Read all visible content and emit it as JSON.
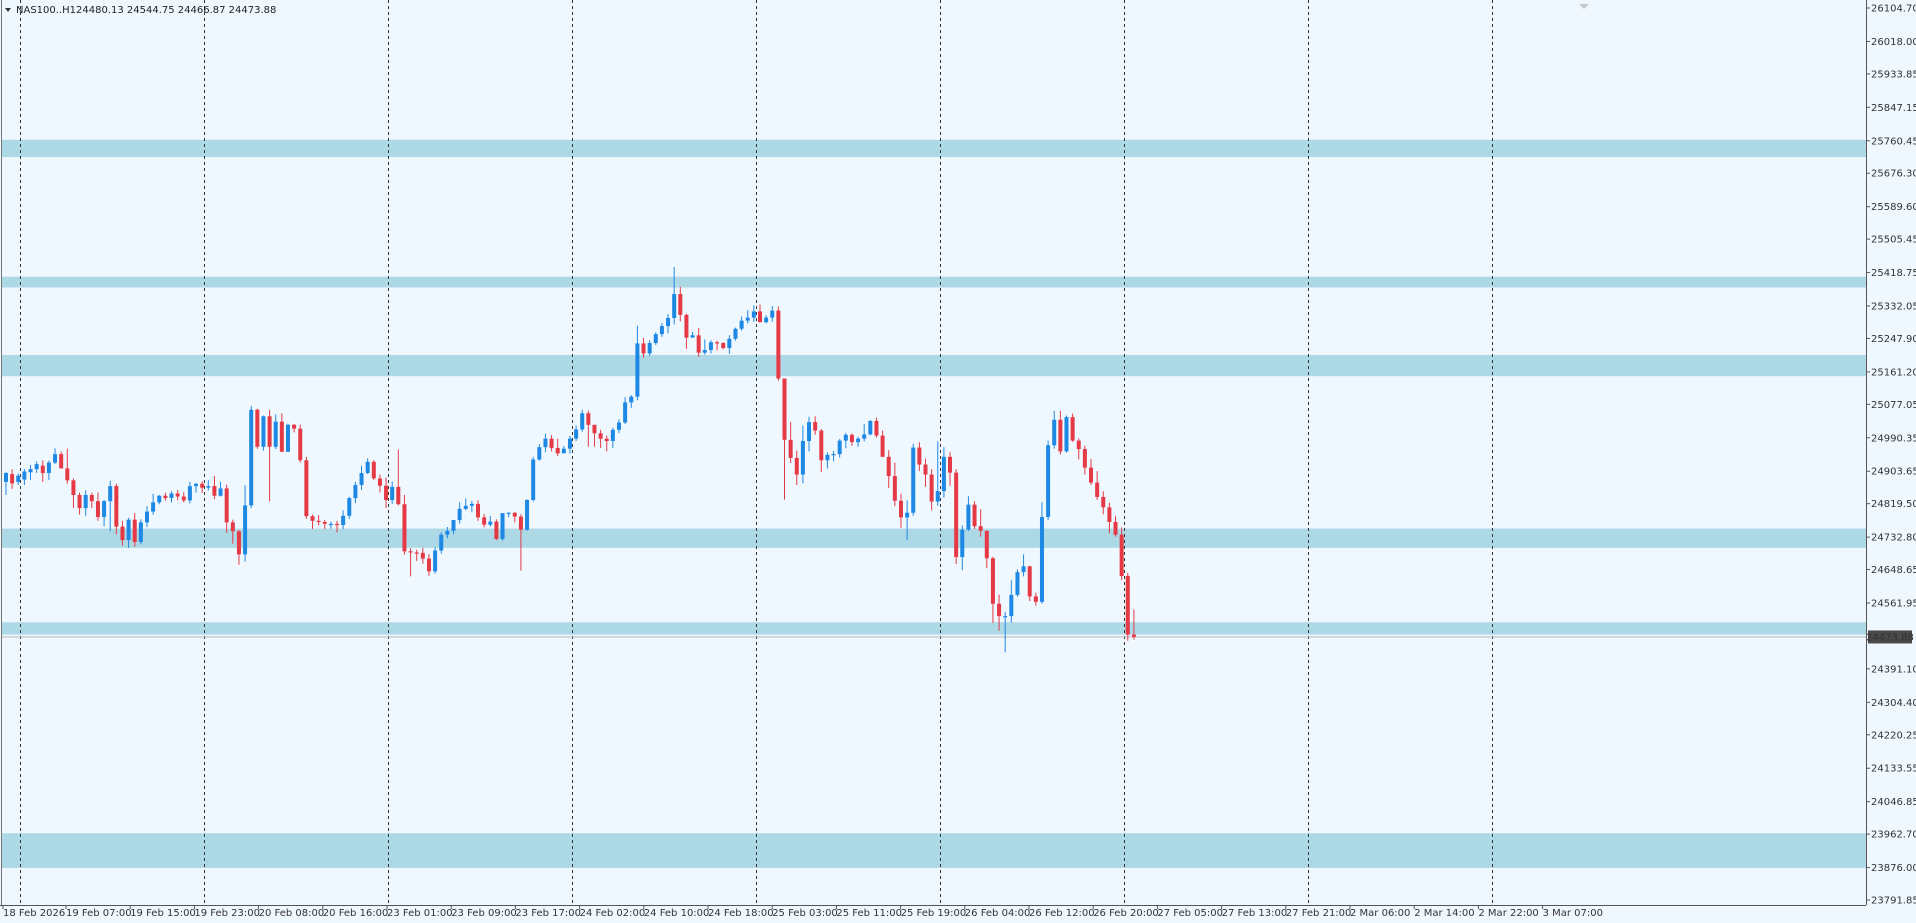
{
  "chart_data": {
    "type": "candlestick",
    "title": "NAS100..H1",
    "ohlc_text": "24480.13 24544.75 24466.87 24473.88",
    "current_price": "24473.88",
    "colors": {
      "bull": "#1e88e5",
      "bear": "#e53945",
      "zone": "#add8e6",
      "background": "#f0f8ff",
      "grid": "#333333"
    },
    "price_ticks": [
      "26104.70",
      "26018.00",
      "25933.85",
      "25847.15",
      "25760.45",
      "25676.30",
      "25589.60",
      "25505.45",
      "25418.75",
      "25332.05",
      "25247.90",
      "25161.20",
      "25077.05",
      "24990.35",
      "24903.65",
      "24819.50",
      "24732.80",
      "24648.65",
      "24561.95",
      "24473.88",
      "24391.10",
      "24304.40",
      "24220.25",
      "24133.55",
      "24046.85",
      "23962.70",
      "23876.00",
      "23791.85"
    ],
    "time_ticks": [
      "18 Feb 2026",
      "19 Feb 07:00",
      "19 Feb 15:00",
      "19 Feb 23:00",
      "20 Feb 08:00",
      "20 Feb 16:00",
      "23 Feb 01:00",
      "23 Feb 09:00",
      "23 Feb 17:00",
      "24 Feb 02:00",
      "24 Feb 10:00",
      "24 Feb 18:00",
      "25 Feb 03:00",
      "25 Feb 11:00",
      "25 Feb 19:00",
      "26 Feb 04:00",
      "26 Feb 12:00",
      "26 Feb 20:00",
      "27 Feb 05:00",
      "27 Feb 13:00",
      "27 Feb 21:00",
      "2 Mar 06:00",
      "2 Mar 14:00",
      "2 Mar 22:00",
      "3 Mar 07:00"
    ],
    "ylim": [
      23791.85,
      26104.7
    ],
    "zones": [
      [
        25718,
        25763
      ],
      [
        25380,
        25408
      ],
      [
        25150,
        25205
      ],
      [
        24705,
        24755
      ],
      [
        24480,
        24512
      ],
      [
        23875,
        23965
      ]
    ],
    "candles": [
      [
        24876,
        24899,
        24842,
        24901
      ],
      [
        24896,
        24872,
        24858,
        24909
      ],
      [
        24876,
        24892,
        24868,
        24898
      ],
      [
        24882,
        24903,
        24868,
        24909
      ],
      [
        24901,
        24909,
        24881,
        24920
      ],
      [
        24909,
        24922,
        24899,
        24929
      ],
      [
        24918,
        24899,
        24876,
        24932
      ],
      [
        24899,
        24926,
        24881,
        24931
      ],
      [
        24926,
        24948,
        24922,
        24963
      ],
      [
        24948,
        24911,
        24911,
        24955
      ],
      [
        24911,
        24880,
        24871,
        24962
      ],
      [
        24880,
        24842,
        24808,
        24885
      ],
      [
        24842,
        24808,
        24791,
        24848
      ],
      [
        24808,
        24842,
        24788,
        24854
      ],
      [
        24842,
        24826,
        24808,
        24848
      ],
      [
        24826,
        24785,
        24775,
        24849
      ],
      [
        24785,
        24826,
        24761,
        24829
      ],
      [
        24826,
        24865,
        24748,
        24879
      ],
      [
        24865,
        24760,
        24740,
        24871
      ],
      [
        24760,
        24725,
        24711,
        24775
      ],
      [
        24725,
        24778,
        24705,
        24783
      ],
      [
        24778,
        24720,
        24708,
        24795
      ],
      [
        24720,
        24771,
        24714,
        24779
      ],
      [
        24771,
        24799,
        24759,
        24813
      ],
      [
        24799,
        24823,
        24791,
        24845
      ],
      [
        24823,
        24840,
        24818,
        24842
      ],
      [
        24840,
        24834,
        24827,
        24848
      ],
      [
        24834,
        24846,
        24823,
        24852
      ],
      [
        24846,
        24838,
        24828,
        24855
      ],
      [
        24838,
        24828,
        24823,
        24849
      ],
      [
        24828,
        24865,
        24820,
        24876
      ],
      [
        24865,
        24871,
        24848,
        24873
      ],
      [
        24871,
        24861,
        24847,
        24878
      ],
      [
        24861,
        24865,
        24854,
        24881
      ],
      [
        24865,
        24840,
        24831,
        24891
      ],
      [
        24840,
        24859,
        24838,
        24876
      ],
      [
        24859,
        24771,
        24744,
        24869
      ],
      [
        24771,
        24748,
        24716,
        24778
      ],
      [
        24748,
        24688,
        24661,
        24751
      ],
      [
        24688,
        24815,
        24669,
        24867
      ],
      [
        24815,
        25063,
        24808,
        25073
      ],
      [
        25063,
        24967,
        24962,
        25066
      ],
      [
        24967,
        25046,
        24957,
        25048
      ],
      [
        25046,
        24967,
        24826,
        25063
      ],
      [
        24967,
        25032,
        24961,
        25051
      ],
      [
        25032,
        24954,
        24954,
        25054
      ],
      [
        24954,
        25024,
        24954,
        25027
      ],
      [
        25024,
        25014,
        25004,
        25026
      ],
      [
        25014,
        24932,
        24926,
        25024
      ],
      [
        24932,
        24787,
        24780,
        24941
      ],
      [
        24787,
        24775,
        24754,
        24791
      ],
      [
        24775,
        24772,
        24763,
        24790
      ],
      [
        24772,
        24767,
        24754,
        24777
      ],
      [
        24767,
        24767,
        24755,
        24773
      ],
      [
        24767,
        24764,
        24745,
        24775
      ],
      [
        24764,
        24788,
        24754,
        24802
      ],
      [
        24788,
        24834,
        24780,
        24837
      ],
      [
        24834,
        24868,
        24821,
        24876
      ],
      [
        24868,
        24899,
        24855,
        24918
      ],
      [
        24899,
        24928,
        24896,
        24937
      ],
      [
        24928,
        24885,
        24881,
        24932
      ],
      [
        24885,
        24866,
        24849,
        24895
      ],
      [
        24866,
        24829,
        24808,
        24887
      ],
      [
        24829,
        24863,
        24819,
        24877
      ],
      [
        24863,
        24818,
        24815,
        24960
      ],
      [
        24818,
        24696,
        24687,
        24842
      ],
      [
        24696,
        24693,
        24631,
        24704
      ],
      [
        24693,
        24692,
        24671,
        24700
      ],
      [
        24692,
        24677,
        24664,
        24705
      ],
      [
        24677,
        24644,
        24633,
        24689
      ],
      [
        24644,
        24698,
        24638,
        24707
      ],
      [
        24698,
        24739,
        24690,
        24745
      ],
      [
        24739,
        24749,
        24730,
        24759
      ],
      [
        24749,
        24777,
        24740,
        24777
      ],
      [
        24777,
        24806,
        24768,
        24823
      ],
      [
        24806,
        24814,
        24802,
        24833
      ],
      [
        24814,
        24819,
        24797,
        24827
      ],
      [
        24819,
        24784,
        24775,
        24828
      ],
      [
        24784,
        24765,
        24758,
        24793
      ],
      [
        24765,
        24773,
        24760,
        24788
      ],
      [
        24773,
        24728,
        24725,
        24779
      ],
      [
        24728,
        24795,
        24723,
        24795
      ],
      [
        24795,
        24796,
        24784,
        24797
      ],
      [
        24796,
        24786,
        24771,
        24797
      ],
      [
        24786,
        24752,
        24646,
        24792
      ],
      [
        24752,
        24829,
        24749,
        24831
      ],
      [
        24829,
        24934,
        24825,
        24941
      ],
      [
        24934,
        24966,
        24931,
        24974
      ],
      [
        24966,
        24988,
        24953,
        25001
      ],
      [
        24988,
        24964,
        24955,
        24997
      ],
      [
        24964,
        24950,
        24943,
        24988
      ],
      [
        24950,
        24962,
        24954,
        24969
      ],
      [
        24962,
        24988,
        24949,
        24995
      ],
      [
        24988,
        25012,
        24982,
        25022
      ],
      [
        25012,
        25054,
        25006,
        25063
      ],
      [
        25054,
        25024,
        24967,
        25061
      ],
      [
        25024,
        25002,
        24967,
        25004
      ],
      [
        25002,
        24988,
        24964,
        25011
      ],
      [
        24988,
        24982,
        24955,
        24996
      ],
      [
        24982,
        25011,
        24964,
        25016
      ],
      [
        25011,
        25030,
        25002,
        25038
      ],
      [
        25030,
        25082,
        25026,
        25096
      ],
      [
        25082,
        25097,
        25068,
        25101
      ],
      [
        25097,
        25235,
        25088,
        25281
      ],
      [
        25235,
        25209,
        25198,
        25249
      ],
      [
        25209,
        25236,
        25203,
        25243
      ],
      [
        25236,
        25259,
        25231,
        25264
      ],
      [
        25259,
        25280,
        25252,
        25288
      ],
      [
        25280,
        25301,
        25261,
        25311
      ],
      [
        25301,
        25363,
        25284,
        25433
      ],
      [
        25363,
        25309,
        25292,
        25382
      ],
      [
        25309,
        25250,
        25221,
        25312
      ],
      [
        25250,
        25256,
        25252,
        25265
      ],
      [
        25256,
        25211,
        25200,
        25275
      ],
      [
        25211,
        25218,
        25206,
        25245
      ],
      [
        25218,
        25238,
        25209,
        25243
      ],
      [
        25238,
        25236,
        25217,
        25242
      ],
      [
        25236,
        25223,
        25220,
        25238
      ],
      [
        25223,
        25247,
        25208,
        25256
      ],
      [
        25247,
        25273,
        25242,
        25276
      ],
      [
        25273,
        25294,
        25268,
        25305
      ],
      [
        25294,
        25302,
        25287,
        25321
      ],
      [
        25302,
        25318,
        25291,
        25334
      ],
      [
        25318,
        25290,
        25290,
        25336
      ],
      [
        25290,
        25302,
        25287,
        25308
      ],
      [
        25302,
        25320,
        25291,
        25332
      ],
      [
        25320,
        25144,
        25138,
        25331
      ],
      [
        25144,
        24985,
        24830,
        25142
      ],
      [
        24985,
        24938,
        24925,
        25032
      ],
      [
        24938,
        24895,
        24868,
        24957
      ],
      [
        24895,
        24982,
        24872,
        25022
      ],
      [
        24982,
        25031,
        24955,
        25045
      ],
      [
        25031,
        25009,
        24998,
        25046
      ],
      [
        25009,
        24932,
        24901,
        25013
      ],
      [
        24932,
        24946,
        24911,
        24952
      ],
      [
        24946,
        24948,
        24929,
        24956
      ],
      [
        24948,
        24983,
        24939,
        24987
      ],
      [
        24983,
        24998,
        24963,
        25003
      ],
      [
        24998,
        24979,
        24969,
        25002
      ],
      [
        24979,
        24988,
        24967,
        24993
      ],
      [
        24988,
        24999,
        24981,
        25026
      ],
      [
        24999,
        25034,
        24997,
        25036
      ],
      [
        25034,
        24996,
        24991,
        25043
      ],
      [
        24996,
        24941,
        24941,
        25009
      ],
      [
        24941,
        24891,
        24860,
        24958
      ],
      [
        24891,
        24827,
        24813,
        24926
      ],
      [
        24827,
        24784,
        24757,
        24845
      ],
      [
        24784,
        24796,
        24725,
        24828
      ],
      [
        24796,
        24965,
        24788,
        24975
      ],
      [
        24965,
        24921,
        24904,
        24979
      ],
      [
        24921,
        24895,
        24863,
        24936
      ],
      [
        24895,
        24825,
        24802,
        24909
      ],
      [
        24825,
        24852,
        24814,
        24981
      ],
      [
        24852,
        24941,
        24835,
        24966
      ],
      [
        24941,
        24900,
        24866,
        24953
      ],
      [
        24900,
        24681,
        24663,
        24909
      ],
      [
        24681,
        24752,
        24647,
        24763
      ],
      [
        24752,
        24817,
        24749,
        24839
      ],
      [
        24817,
        24761,
        24754,
        24826
      ],
      [
        24761,
        24749,
        24734,
        24805
      ],
      [
        24749,
        24678,
        24652,
        24750
      ],
      [
        24678,
        24560,
        24510,
        24682
      ],
      [
        24560,
        24528,
        24490,
        24584
      ],
      [
        24528,
        24528,
        24434,
        24539
      ],
      [
        24528,
        24583,
        24511,
        24621
      ],
      [
        24583,
        24642,
        24578,
        24649
      ],
      [
        24642,
        24657,
        24631,
        24688
      ],
      [
        24657,
        24579,
        24567,
        24659
      ],
      [
        24579,
        24565,
        24555,
        24589
      ],
      [
        24565,
        24785,
        24560,
        24823
      ],
      [
        24785,
        24971,
        24777,
        24983
      ],
      [
        24971,
        25037,
        24962,
        25060
      ],
      [
        25037,
        24955,
        24947,
        25060
      ],
      [
        24955,
        25044,
        24952,
        25048
      ],
      [
        25044,
        24983,
        24980,
        25053
      ],
      [
        24983,
        24961,
        24934,
        24989
      ],
      [
        24961,
        24913,
        24895,
        24970
      ],
      [
        24913,
        24874,
        24868,
        24935
      ],
      [
        24874,
        24837,
        24829,
        24904
      ],
      [
        24837,
        24810,
        24792,
        24852
      ],
      [
        24810,
        24772,
        24743,
        24822
      ],
      [
        24772,
        24739,
        24734,
        24788
      ],
      [
        24739,
        24632,
        24621,
        24758
      ],
      [
        24632,
        24480,
        24464,
        24640
      ],
      [
        24480,
        24474,
        24467,
        24545
      ]
    ]
  }
}
